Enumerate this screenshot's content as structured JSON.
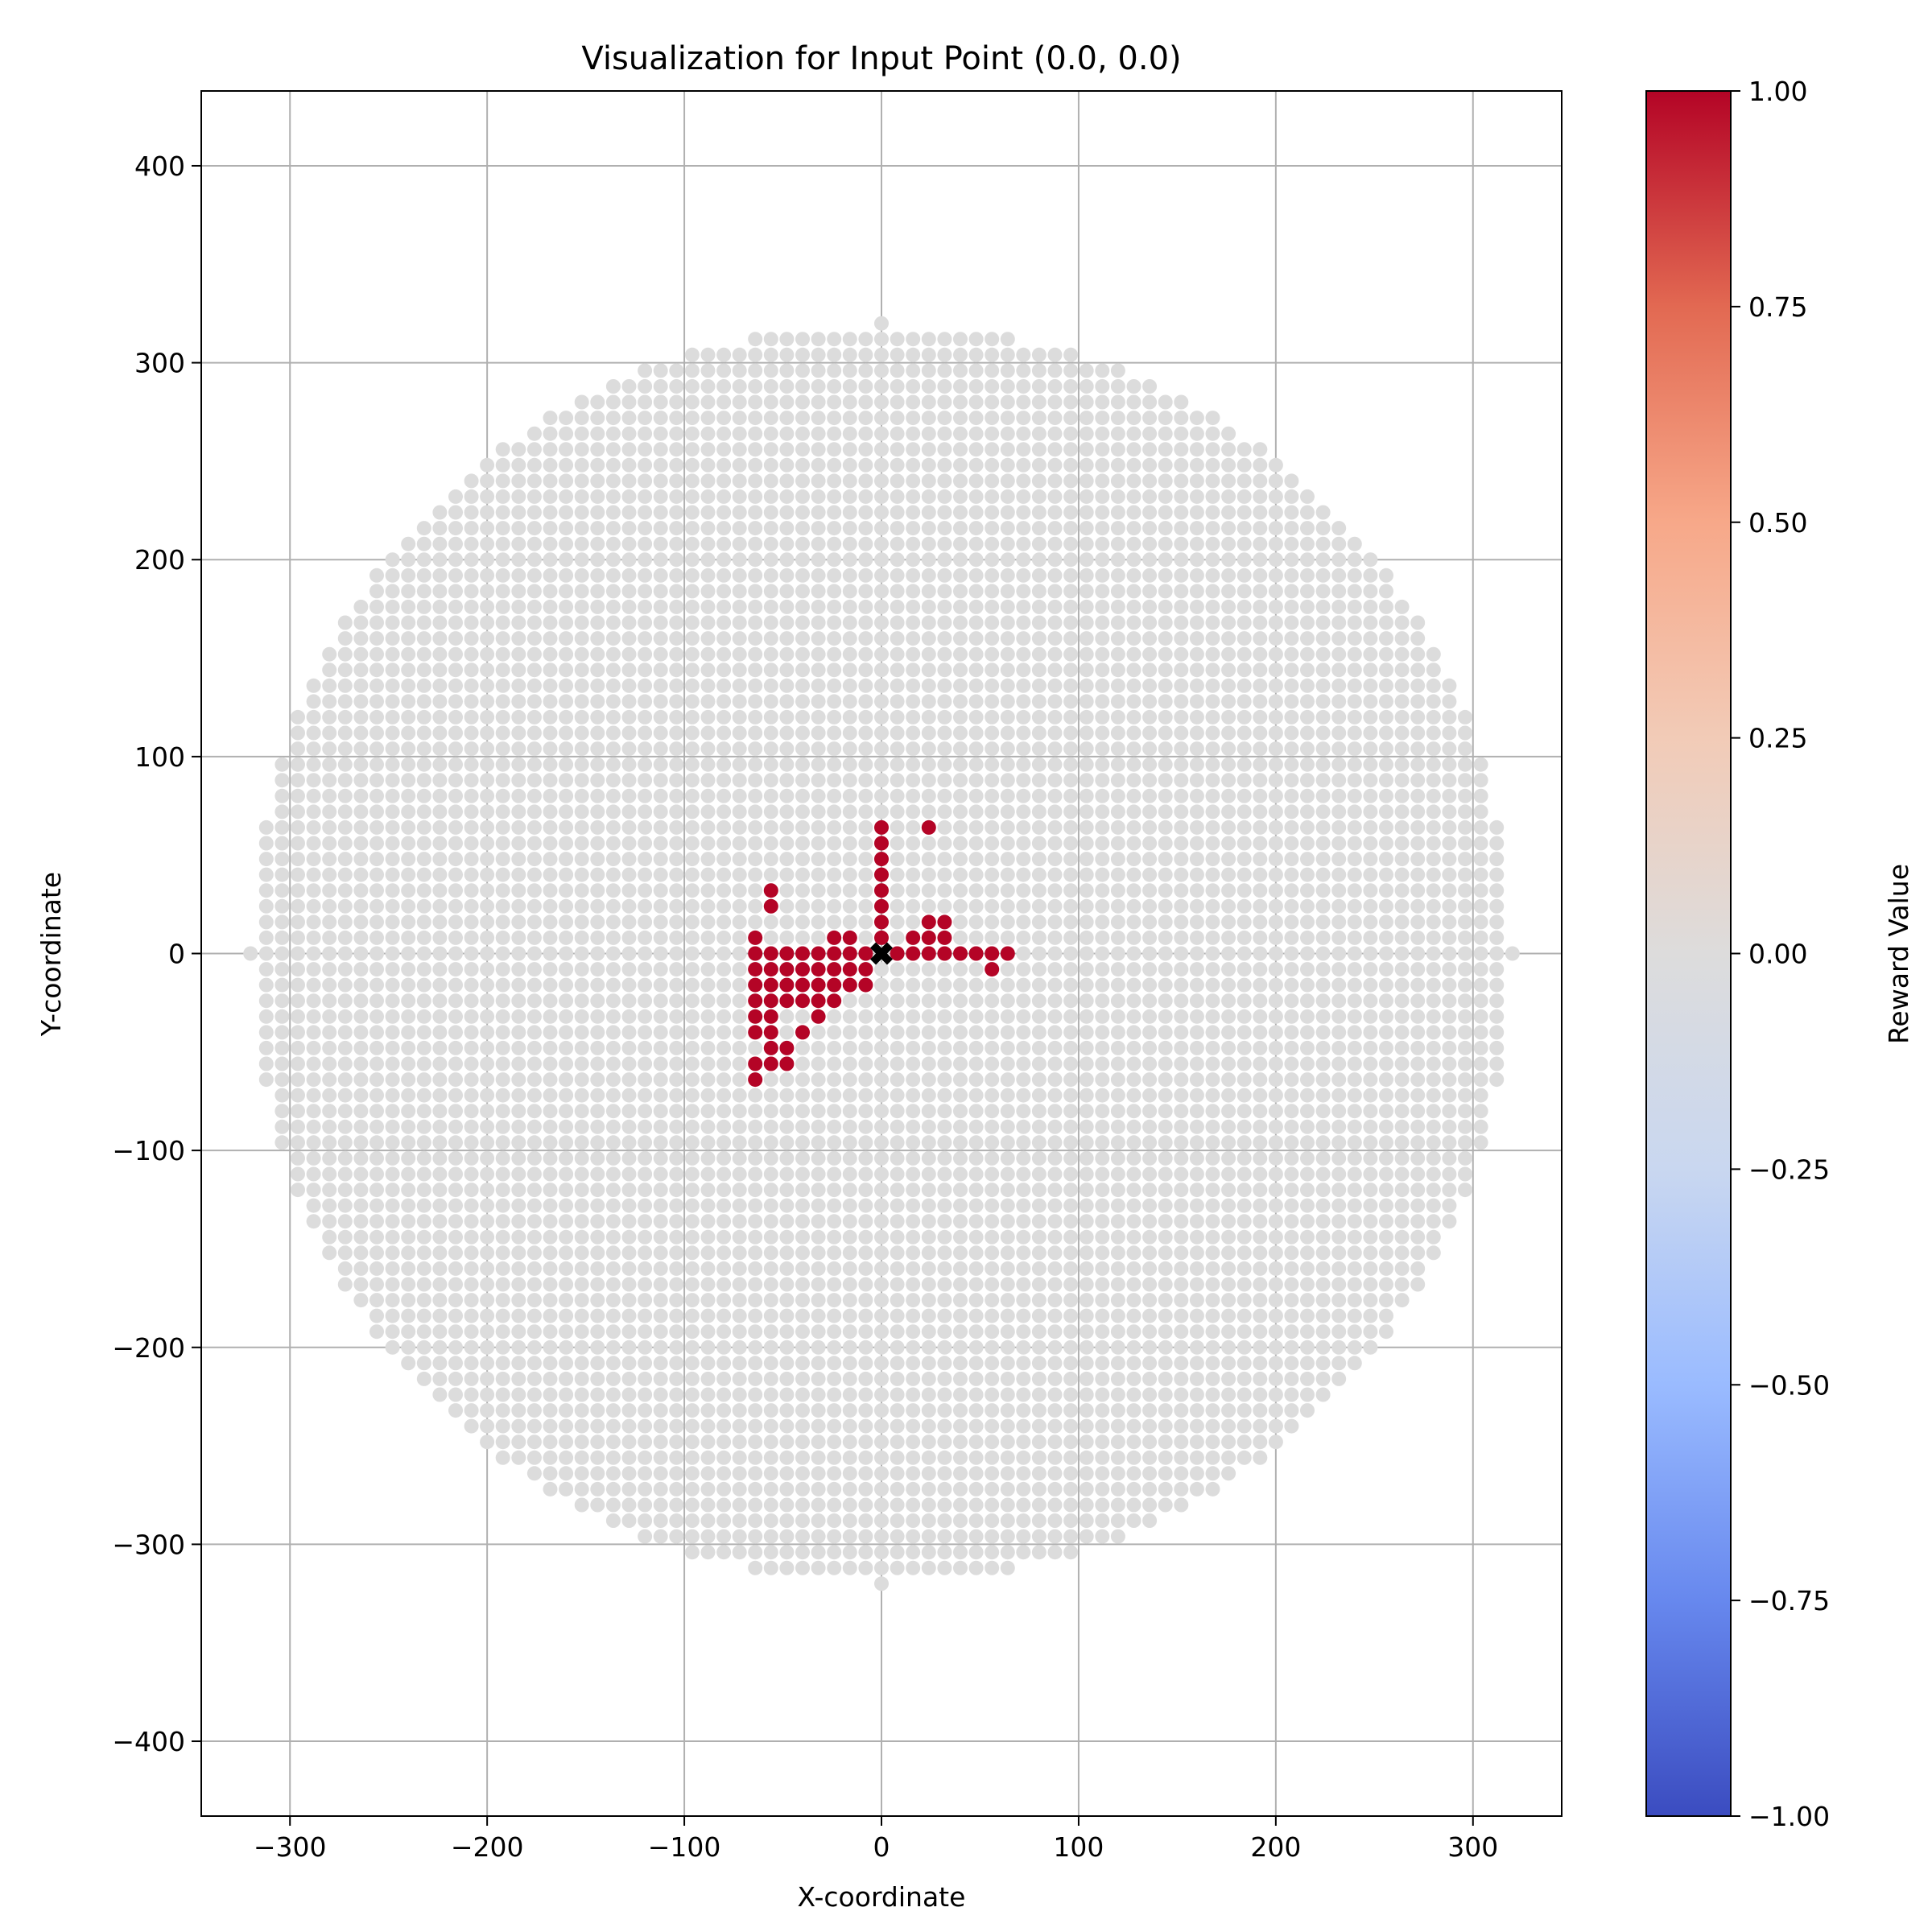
{
  "chart_data": {
    "type": "scatter",
    "title": "Visualization for Input Point (0.0, 0.0)",
    "xlabel": "X-coordinate",
    "ylabel": "Y-coordinate",
    "xlim": [
      -345,
      345
    ],
    "ylim": [
      -438,
      438
    ],
    "x_ticks": [
      -300,
      -200,
      -100,
      0,
      100,
      200,
      300
    ],
    "y_ticks": [
      -400,
      -300,
      -200,
      -100,
      0,
      100,
      200,
      300,
      400
    ],
    "x_tick_labels": [
      "−300",
      "−200",
      "−100",
      "0",
      "100",
      "200",
      "300"
    ],
    "y_tick_labels": [
      "−400",
      "−300",
      "−200",
      "−100",
      "0",
      "100",
      "200",
      "300",
      "400"
    ],
    "grid": true,
    "colormap": "coolwarm",
    "colorbar": {
      "label": "Reward Value",
      "range": [
        -1.0,
        1.0
      ],
      "ticks": [
        1.0,
        0.75,
        0.5,
        0.25,
        0.0,
        -0.25,
        -0.5,
        -0.75,
        -1.0
      ],
      "tick_labels": [
        "1.00",
        "0.75",
        "0.50",
        "0.25",
        "0.00",
        "−0.25",
        "−0.50",
        "−0.75",
        "−1.00"
      ],
      "stops": [
        "#3b4cc0",
        "#6788ee",
        "#9abbff",
        "#c9d7f0",
        "#dddcdc",
        "#f2cbb7",
        "#f7a889",
        "#e26952",
        "#b40426"
      ]
    },
    "background_points": {
      "description_value": 0.0,
      "color": "#dcdcdc",
      "grid_step": 8,
      "radius": 320
    },
    "reward_points": {
      "value": 1.0,
      "color": "#b40426",
      "points": [
        [
          0,
          64
        ],
        [
          0,
          56
        ],
        [
          0,
          48
        ],
        [
          0,
          40
        ],
        [
          0,
          32
        ],
        [
          0,
          24
        ],
        [
          0,
          16
        ],
        [
          0,
          8
        ],
        [
          24,
          64
        ],
        [
          -56,
          32
        ],
        [
          -56,
          24
        ],
        [
          -64,
          8
        ],
        [
          -24,
          8
        ],
        [
          -16,
          8
        ],
        [
          16,
          8
        ],
        [
          24,
          8
        ],
        [
          32,
          8
        ],
        [
          24,
          16
        ],
        [
          32,
          16
        ],
        [
          -64,
          0
        ],
        [
          -56,
          0
        ],
        [
          -48,
          0
        ],
        [
          -40,
          0
        ],
        [
          -32,
          0
        ],
        [
          -24,
          0
        ],
        [
          -16,
          0
        ],
        [
          -8,
          0
        ],
        [
          8,
          0
        ],
        [
          16,
          0
        ],
        [
          24,
          0
        ],
        [
          32,
          0
        ],
        [
          40,
          0
        ],
        [
          48,
          0
        ],
        [
          56,
          0
        ],
        [
          64,
          0
        ],
        [
          56,
          -8
        ],
        [
          -64,
          -8
        ],
        [
          -56,
          -8
        ],
        [
          -48,
          -8
        ],
        [
          -40,
          -8
        ],
        [
          -32,
          -8
        ],
        [
          -24,
          -8
        ],
        [
          -16,
          -8
        ],
        [
          -8,
          -8
        ],
        [
          -64,
          -16
        ],
        [
          -56,
          -16
        ],
        [
          -48,
          -16
        ],
        [
          -40,
          -16
        ],
        [
          -32,
          -16
        ],
        [
          -24,
          -16
        ],
        [
          -16,
          -16
        ],
        [
          -8,
          -16
        ],
        [
          -64,
          -24
        ],
        [
          -56,
          -24
        ],
        [
          -48,
          -24
        ],
        [
          -40,
          -24
        ],
        [
          -32,
          -24
        ],
        [
          -24,
          -24
        ],
        [
          -64,
          -32
        ],
        [
          -56,
          -32
        ],
        [
          -32,
          -32
        ],
        [
          -64,
          -40
        ],
        [
          -56,
          -40
        ],
        [
          -40,
          -40
        ],
        [
          -56,
          -48
        ],
        [
          -48,
          -48
        ],
        [
          -64,
          -56
        ],
        [
          -56,
          -56
        ],
        [
          -48,
          -56
        ],
        [
          -64,
          -64
        ]
      ]
    },
    "input_point": {
      "x": 0.0,
      "y": 0.0,
      "marker": "X",
      "color": "#000000"
    }
  }
}
